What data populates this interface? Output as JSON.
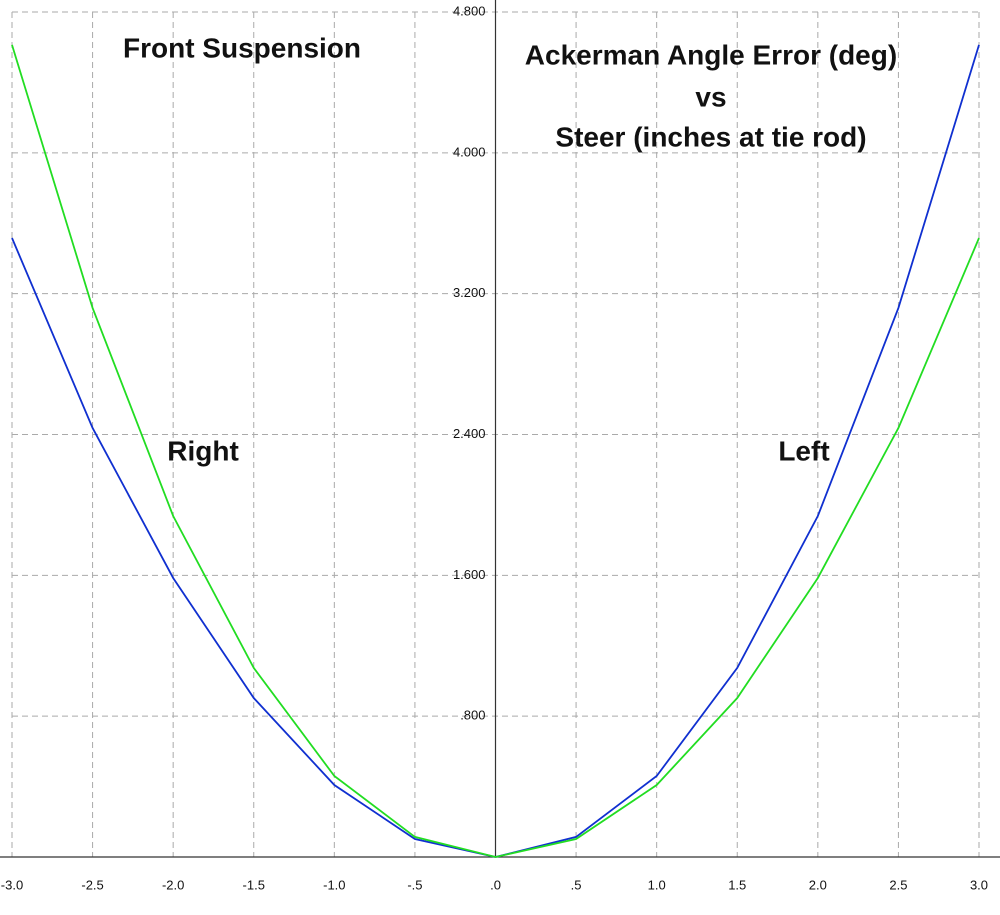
{
  "chart_data": {
    "type": "line",
    "annotations": [
      "Front Suspension",
      "Ackerman Angle Error (deg)",
      "vs",
      "Steer (inches at tie rod)",
      "Right",
      "Left"
    ],
    "x": [
      -3,
      -2.5,
      -2,
      -1.5,
      -1,
      -0.5,
      0,
      0.5,
      1,
      1.5,
      2,
      2.5,
      3
    ],
    "series": [
      {
        "color": "#1030d0",
        "values": [
          3.516,
          2.437,
          1.585,
          0.903,
          0.409,
          0.102,
          0,
          0.114,
          0.46,
          1.074,
          1.937,
          3.119,
          4.613
        ]
      },
      {
        "color": "#22dd22",
        "values": [
          4.613,
          3.119,
          1.937,
          1.074,
          0.46,
          0.114,
          0,
          0.102,
          0.409,
          0.903,
          1.585,
          2.437,
          3.516
        ]
      }
    ],
    "xlim": [
      -3,
      3
    ],
    "ylim": [
      0,
      4.8
    ],
    "xticks": [
      {
        "value": -3,
        "label": "-3.0"
      },
      {
        "value": -2.5,
        "label": "-2.5"
      },
      {
        "value": -2,
        "label": "-2.0"
      },
      {
        "value": -1.5,
        "label": "-1.5"
      },
      {
        "value": -1,
        "label": "-1.0"
      },
      {
        "value": -0.5,
        "label": "-.5"
      },
      {
        "value": 0,
        "label": ".0"
      },
      {
        "value": 0.5,
        "label": ".5"
      },
      {
        "value": 1,
        "label": "1.0"
      },
      {
        "value": 1.5,
        "label": "1.5"
      },
      {
        "value": 2,
        "label": "2.0"
      },
      {
        "value": 2.5,
        "label": "2.5"
      },
      {
        "value": 3,
        "label": "3.0"
      }
    ],
    "yticks": [
      {
        "value": 0.8,
        "label": ".800"
      },
      {
        "value": 1.6,
        "label": "1.600"
      },
      {
        "value": 2.4,
        "label": "2.400"
      },
      {
        "value": 3.2,
        "label": "3.200"
      },
      {
        "value": 4,
        "label": "4.000"
      },
      {
        "value": 4.8,
        "label": "4.800"
      }
    ],
    "grid": true
  }
}
